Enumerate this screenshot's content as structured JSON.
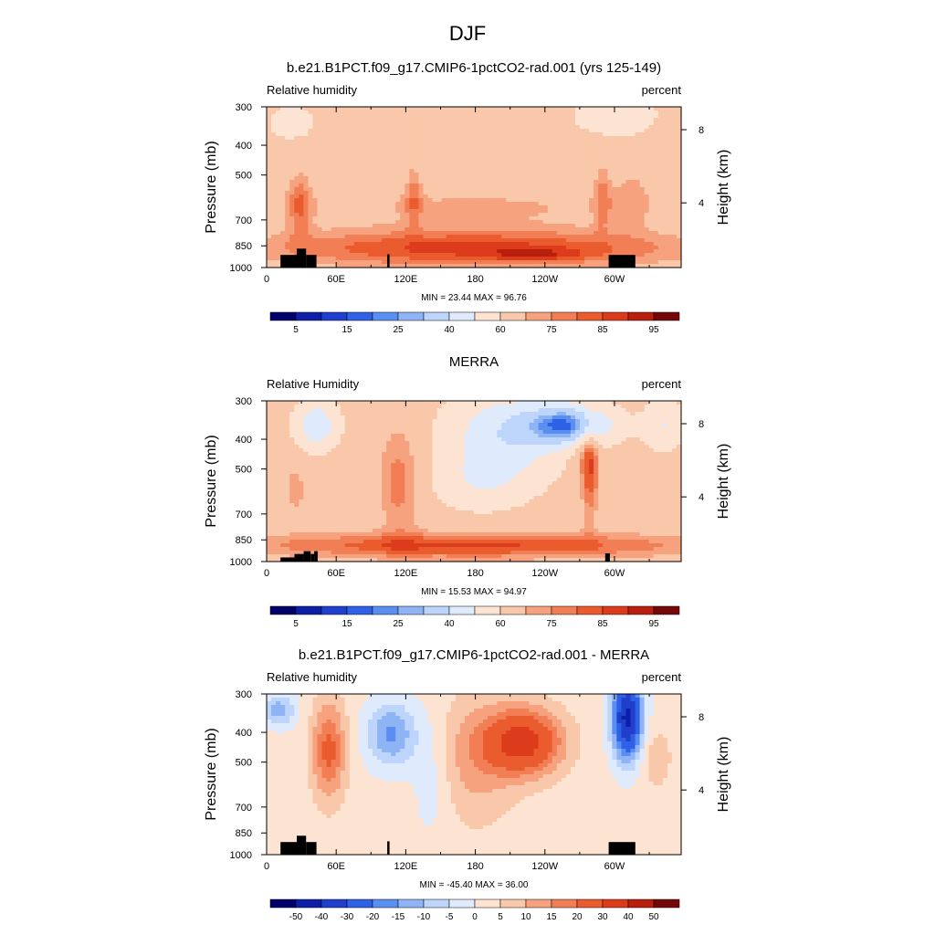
{
  "figure": {
    "title": "DJF",
    "bg_color": "#ffffff"
  },
  "chart_data": [
    {
      "type": "heatmap",
      "panel_title": "b.e21.B1PCT.f09_g17.CMIP6-1pctCO2-rad.001 (yrs 125-149)",
      "left_label": "Relative humidity",
      "right_label": "percent",
      "ylabel": "Pressure (mb)",
      "ylabel_right": "Height (km)",
      "x_ticks": [
        "0",
        "60E",
        "120E",
        "180",
        "120W",
        "60W"
      ],
      "x_tick_lon": [
        0,
        60,
        120,
        180,
        240,
        300
      ],
      "xlim": [
        0,
        357.5
      ],
      "y_ticks": [
        "300",
        "400",
        "500",
        "700",
        "850",
        "1000"
      ],
      "y_tick_values": [
        300,
        400,
        500,
        700,
        850,
        1000
      ],
      "ylim": [
        1000,
        300
      ],
      "y_scale": "log",
      "y_right_ticks": [
        "8",
        "4"
      ],
      "y_right_tick_pressure": [
        356,
        616
      ],
      "min_max_text": "MIN =  23.44  MAX =  96.76",
      "min": 23.44,
      "max": 96.76,
      "colorbar": {
        "labels": [
          "5",
          "15",
          "25",
          "40",
          "60",
          "75",
          "85",
          "95"
        ],
        "label_box_index": [
          1,
          3,
          5,
          7,
          9,
          11,
          13,
          15
        ],
        "colors": [
          "#00006b",
          "#0d1fa7",
          "#1f3fcc",
          "#2e61e6",
          "#5a8ef0",
          "#8fb4f6",
          "#bdd5fb",
          "#dfeafc",
          "#fde4d2",
          "#f9c7a9",
          "#f6a27e",
          "#f27e55",
          "#ea5b2e",
          "#dc3c1b",
          "#b81f0d",
          "#740808"
        ]
      },
      "grid": false
    },
    {
      "type": "heatmap",
      "panel_title": "MERRA",
      "left_label": "Relative Humidity",
      "right_label": "percent",
      "ylabel": "Pressure (mb)",
      "ylabel_right": "Height (km)",
      "x_ticks": [
        "0",
        "60E",
        "120E",
        "180",
        "120W",
        "60W"
      ],
      "x_tick_lon": [
        0,
        60,
        120,
        180,
        240,
        300
      ],
      "xlim": [
        0,
        357.5
      ],
      "y_ticks": [
        "300",
        "400",
        "500",
        "700",
        "850",
        "1000"
      ],
      "y_tick_values": [
        300,
        400,
        500,
        700,
        850,
        1000
      ],
      "ylim": [
        1000,
        300
      ],
      "y_scale": "log",
      "y_right_ticks": [
        "8",
        "4"
      ],
      "y_right_tick_pressure": [
        356,
        616
      ],
      "min_max_text": "MIN =  15.53  MAX =  94.97",
      "min": 15.53,
      "max": 94.97,
      "colorbar": {
        "labels": [
          "5",
          "15",
          "25",
          "40",
          "60",
          "75",
          "85",
          "95"
        ],
        "label_box_index": [
          1,
          3,
          5,
          7,
          9,
          11,
          13,
          15
        ],
        "colors": [
          "#00006b",
          "#0d1fa7",
          "#1f3fcc",
          "#2e61e6",
          "#5a8ef0",
          "#8fb4f6",
          "#bdd5fb",
          "#dfeafc",
          "#fde4d2",
          "#f9c7a9",
          "#f6a27e",
          "#f27e55",
          "#ea5b2e",
          "#dc3c1b",
          "#b81f0d",
          "#740808"
        ]
      },
      "grid": false
    },
    {
      "type": "heatmap",
      "panel_title": "b.e21.B1PCT.f09_g17.CMIP6-1pctCO2-rad.001 - MERRA",
      "left_label": "Relative humidity",
      "right_label": "percent",
      "ylabel": "Pressure (mb)",
      "ylabel_right": "Height (km)",
      "x_ticks": [
        "0",
        "60E",
        "120E",
        "180",
        "120W",
        "60W"
      ],
      "x_tick_lon": [
        0,
        60,
        120,
        180,
        240,
        300
      ],
      "xlim": [
        0,
        357.5
      ],
      "y_ticks": [
        "300",
        "400",
        "500",
        "700",
        "850",
        "1000"
      ],
      "y_tick_values": [
        300,
        400,
        500,
        700,
        850,
        1000
      ],
      "ylim": [
        1000,
        300
      ],
      "y_scale": "log",
      "y_right_ticks": [
        "8",
        "4"
      ],
      "y_right_tick_pressure": [
        356,
        616
      ],
      "min_max_text": "MIN = -45.40  MAX =  36.00",
      "min": -45.4,
      "max": 36.0,
      "colorbar": {
        "labels": [
          "-50",
          "-40",
          "-30",
          "-20",
          "-15",
          "-10",
          "-5",
          "0",
          "5",
          "10",
          "15",
          "20",
          "30",
          "40",
          "50"
        ],
        "label_box_index": [
          1,
          2,
          3,
          4,
          5,
          6,
          7,
          8,
          9,
          10,
          11,
          12,
          13,
          14,
          15
        ],
        "colors": [
          "#00006b",
          "#0d1fa7",
          "#1f3fcc",
          "#2e61e6",
          "#5a8ef0",
          "#8fb4f6",
          "#bdd5fb",
          "#dfeafc",
          "#fde4d2",
          "#f9c7a9",
          "#f6a27e",
          "#f27e55",
          "#ea5b2e",
          "#dc3c1b",
          "#b81f0d",
          "#740808"
        ]
      },
      "grid": false
    }
  ]
}
